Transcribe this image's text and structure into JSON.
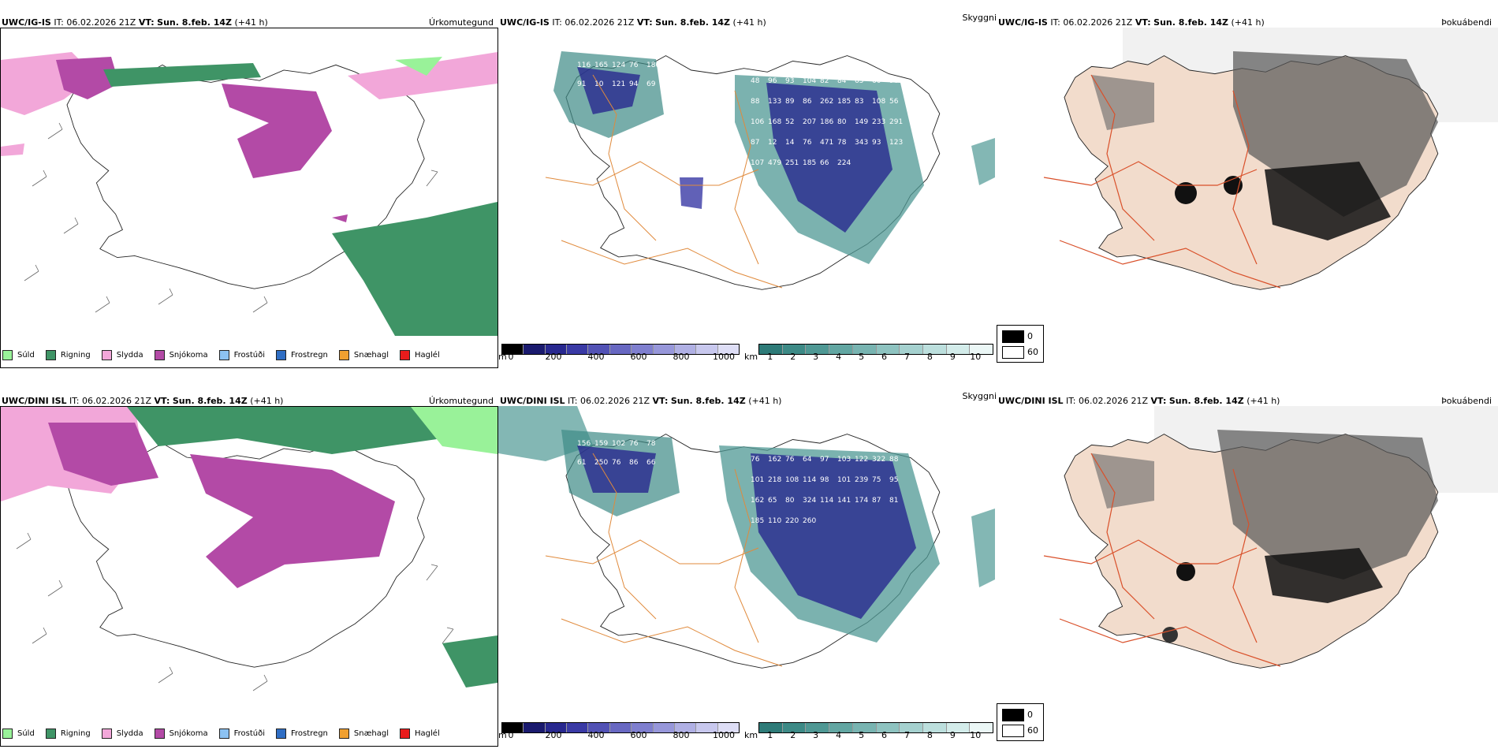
{
  "row_top": {
    "precip": {
      "model": "UWC/IG-IS",
      "it_label": "IT:",
      "it_value": "06.02.2026 21Z",
      "vt_label": "VT:",
      "vt_value": "Sun. 8.feb. 14Z",
      "lead": "(+41 h)",
      "title": "Úrkomutegund"
    },
    "cloud": {
      "model": "UWC/IG-IS",
      "it_label": "IT:",
      "it_value": "06.02.2026 21Z",
      "vt_label": "VT:",
      "vt_value": "Sun. 8.feb. 14Z",
      "lead": "(+41 h)",
      "title": "Skyggni"
    },
    "fog": {
      "model": "UWC/IG-IS",
      "it_label": "IT:",
      "it_value": "06.02.2026 21Z",
      "vt_label": "VT:",
      "vt_value": "Sun. 8.feb. 14Z",
      "lead": "(+41 h)",
      "title": "Þokuábendi"
    },
    "cloud_labels": [
      "116",
      "165",
      "124",
      "76",
      "180",
      "91",
      "10",
      "121",
      "94",
      "69",
      "48",
      "96",
      "93",
      "104",
      "82",
      "84",
      "65",
      "60",
      "90",
      "88",
      "133",
      "89",
      "86",
      "262",
      "185",
      "83",
      "108",
      "56",
      "106",
      "168",
      "52",
      "207",
      "186",
      "80",
      "149",
      "233",
      "291",
      "87",
      "12",
      "14",
      "76",
      "471",
      "78",
      "343",
      "93",
      "123",
      "107",
      "479",
      "251",
      "185",
      "66",
      "224"
    ]
  },
  "row_bottom": {
    "precip": {
      "model": "UWC/DINI ISL",
      "it_label": "IT:",
      "it_value": "06.02.2026 21Z",
      "vt_label": "VT:",
      "vt_value": "Sun. 8.feb. 14Z",
      "lead": "(+41 h)",
      "title": "Úrkomutegund"
    },
    "cloud": {
      "model": "UWC/DINI ISL",
      "it_label": "IT:",
      "it_value": "06.02.2026 21Z",
      "vt_label": "VT:",
      "vt_value": "Sun. 8.feb. 14Z",
      "lead": "(+41 h)",
      "title": "Skyggni"
    },
    "fog": {
      "model": "UWC/DINI ISL",
      "it_label": "IT:",
      "it_value": "06.02.2026 21Z",
      "vt_label": "VT:",
      "vt_value": "Sun. 8.feb. 14Z",
      "lead": "(+41 h)",
      "title": "Þokuábendi"
    },
    "cloud_labels": [
      "156",
      "159",
      "102",
      "76",
      "78",
      "61",
      "250",
      "76",
      "86",
      "66",
      "76",
      "162",
      "76",
      "64",
      "97",
      "103",
      "122",
      "322",
      "88",
      "101",
      "218",
      "108",
      "114",
      "98",
      "101",
      "239",
      "75",
      "95",
      "162",
      "65",
      "80",
      "324",
      "114",
      "141",
      "174",
      "87",
      "81",
      "185",
      "110",
      "220",
      "260"
    ]
  },
  "legend_precip": [
    {
      "label": "Súld",
      "color": "#99f299"
    },
    {
      "label": "Rigning",
      "color": "#3f9466"
    },
    {
      "label": "Slydda",
      "color": "#f2a7d9"
    },
    {
      "label": "Snjókoma",
      "color": "#b34aa6"
    },
    {
      "label": "Frostúði",
      "color": "#8cc2f2"
    },
    {
      "label": "Frostregn",
      "color": "#2f6ec4"
    },
    {
      "label": "Snæhagl",
      "color": "#f0a030"
    },
    {
      "label": "Haglél",
      "color": "#e81c1c"
    }
  ],
  "colorbar_height": {
    "unit": "m",
    "ticks": [
      "0",
      "200",
      "400",
      "600",
      "800",
      "1000"
    ],
    "colors": [
      "#000000",
      "#1a1a6e",
      "#28288f",
      "#3a3aa5",
      "#5252b5",
      "#6868c2",
      "#7f7fcf",
      "#9797da",
      "#b0b0e4",
      "#c8c8ee",
      "#dedef6"
    ]
  },
  "colorbar_vis": {
    "unit": "km",
    "ticks": [
      "1",
      "2",
      "3",
      "4",
      "5",
      "6",
      "7",
      "8",
      "9",
      "10"
    ],
    "colors": [
      "#2e7b78",
      "#3d8a86",
      "#4f9894",
      "#62a6a2",
      "#78b4b1",
      "#8ec3c0",
      "#a5d1cf",
      "#bcdfdd",
      "#d3ecea",
      "#ebf7f6"
    ]
  },
  "fog_legend": {
    "high": "0",
    "low": "60"
  }
}
